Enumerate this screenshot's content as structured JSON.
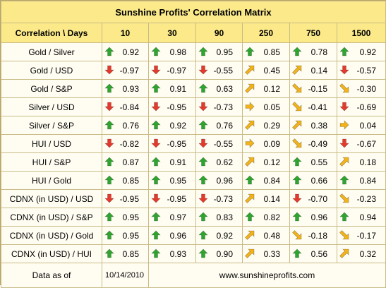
{
  "title": "Sunshine Profits' Correlation Matrix",
  "header": {
    "corner": "Correlation \\ Days",
    "columns": [
      "10",
      "30",
      "90",
      "250",
      "750",
      "1500"
    ]
  },
  "rows": [
    {
      "label": "Gold / Silver",
      "cells": [
        {
          "value": "0.92",
          "arrow": "up-icon"
        },
        {
          "value": "0.98",
          "arrow": "up-icon"
        },
        {
          "value": "0.95",
          "arrow": "up-icon"
        },
        {
          "value": "0.85",
          "arrow": "up-icon"
        },
        {
          "value": "0.78",
          "arrow": "up-icon"
        },
        {
          "value": "0.92",
          "arrow": "up-icon"
        }
      ]
    },
    {
      "label": "Gold / USD",
      "cells": [
        {
          "value": "-0.97",
          "arrow": "down-icon"
        },
        {
          "value": "-0.97",
          "arrow": "down-icon"
        },
        {
          "value": "-0.55",
          "arrow": "down-icon"
        },
        {
          "value": "0.45",
          "arrow": "diagonal-up-icon"
        },
        {
          "value": "0.14",
          "arrow": "diagonal-up-icon"
        },
        {
          "value": "-0.57",
          "arrow": "down-icon"
        }
      ]
    },
    {
      "label": "Gold / S&P",
      "cells": [
        {
          "value": "0.93",
          "arrow": "up-icon"
        },
        {
          "value": "0.91",
          "arrow": "up-icon"
        },
        {
          "value": "0.63",
          "arrow": "up-icon"
        },
        {
          "value": "0.12",
          "arrow": "diagonal-up-icon"
        },
        {
          "value": "-0.15",
          "arrow": "diagonal-down-icon"
        },
        {
          "value": "-0.30",
          "arrow": "diagonal-down-icon"
        }
      ]
    },
    {
      "label": "Silver / USD",
      "cells": [
        {
          "value": "-0.84",
          "arrow": "down-icon"
        },
        {
          "value": "-0.95",
          "arrow": "down-icon"
        },
        {
          "value": "-0.73",
          "arrow": "down-icon"
        },
        {
          "value": "0.05",
          "arrow": "right-icon"
        },
        {
          "value": "-0.41",
          "arrow": "diagonal-down-icon"
        },
        {
          "value": "-0.69",
          "arrow": "down-icon"
        }
      ]
    },
    {
      "label": "Silver / S&P",
      "cells": [
        {
          "value": "0.76",
          "arrow": "up-icon"
        },
        {
          "value": "0.92",
          "arrow": "up-icon"
        },
        {
          "value": "0.76",
          "arrow": "up-icon"
        },
        {
          "value": "0.29",
          "arrow": "diagonal-up-icon"
        },
        {
          "value": "0.38",
          "arrow": "diagonal-up-icon"
        },
        {
          "value": "0.04",
          "arrow": "right-icon"
        }
      ]
    },
    {
      "label": "HUI / USD",
      "cells": [
        {
          "value": "-0.82",
          "arrow": "down-icon"
        },
        {
          "value": "-0.95",
          "arrow": "down-icon"
        },
        {
          "value": "-0.55",
          "arrow": "down-icon"
        },
        {
          "value": "0.09",
          "arrow": "right-icon"
        },
        {
          "value": "-0.49",
          "arrow": "diagonal-down-icon"
        },
        {
          "value": "-0.67",
          "arrow": "down-icon"
        }
      ]
    },
    {
      "label": "HUI / S&P",
      "cells": [
        {
          "value": "0.87",
          "arrow": "up-icon"
        },
        {
          "value": "0.91",
          "arrow": "up-icon"
        },
        {
          "value": "0.62",
          "arrow": "up-icon"
        },
        {
          "value": "0.12",
          "arrow": "diagonal-up-icon"
        },
        {
          "value": "0.55",
          "arrow": "up-icon"
        },
        {
          "value": "0.18",
          "arrow": "diagonal-up-icon"
        }
      ]
    },
    {
      "label": "HUI / Gold",
      "cells": [
        {
          "value": "0.85",
          "arrow": "up-icon"
        },
        {
          "value": "0.95",
          "arrow": "up-icon"
        },
        {
          "value": "0.96",
          "arrow": "up-icon"
        },
        {
          "value": "0.84",
          "arrow": "up-icon"
        },
        {
          "value": "0.66",
          "arrow": "up-icon"
        },
        {
          "value": "0.84",
          "arrow": "up-icon"
        }
      ]
    },
    {
      "label": "CDNX (in USD) / USD",
      "cells": [
        {
          "value": "-0.95",
          "arrow": "down-icon"
        },
        {
          "value": "-0.95",
          "arrow": "down-icon"
        },
        {
          "value": "-0.73",
          "arrow": "down-icon"
        },
        {
          "value": "0.14",
          "arrow": "diagonal-up-icon"
        },
        {
          "value": "-0.70",
          "arrow": "down-icon"
        },
        {
          "value": "-0.23",
          "arrow": "diagonal-down-icon"
        }
      ]
    },
    {
      "label": "CDNX (in USD) / S&P",
      "cells": [
        {
          "value": "0.95",
          "arrow": "up-icon"
        },
        {
          "value": "0.97",
          "arrow": "up-icon"
        },
        {
          "value": "0.83",
          "arrow": "up-icon"
        },
        {
          "value": "0.82",
          "arrow": "up-icon"
        },
        {
          "value": "0.96",
          "arrow": "up-icon"
        },
        {
          "value": "0.94",
          "arrow": "up-icon"
        }
      ]
    },
    {
      "label": "CDNX (in USD) / Gold",
      "cells": [
        {
          "value": "0.95",
          "arrow": "up-icon"
        },
        {
          "value": "0.96",
          "arrow": "up-icon"
        },
        {
          "value": "0.92",
          "arrow": "up-icon"
        },
        {
          "value": "0.48",
          "arrow": "diagonal-up-icon"
        },
        {
          "value": "-0.18",
          "arrow": "diagonal-down-icon"
        },
        {
          "value": "-0.17",
          "arrow": "diagonal-down-icon"
        }
      ]
    },
    {
      "label": "CDNX (in USD) / HUI",
      "cells": [
        {
          "value": "0.85",
          "arrow": "up-icon"
        },
        {
          "value": "0.93",
          "arrow": "up-icon"
        },
        {
          "value": "0.90",
          "arrow": "up-icon"
        },
        {
          "value": "0.33",
          "arrow": "diagonal-up-icon"
        },
        {
          "value": "0.56",
          "arrow": "up-icon"
        },
        {
          "value": "0.32",
          "arrow": "diagonal-up-icon"
        }
      ]
    }
  ],
  "footer": {
    "label": "Data as of",
    "date": "10/14/2010",
    "website": "www.sunshineprofits.com"
  },
  "colors": {
    "header_bg": "#fbe98a",
    "body_bg": "#fffdf2",
    "border": "#c9bb86",
    "up": "#2ea52e",
    "down": "#e43a2c",
    "sideways": "#f1b21b"
  }
}
